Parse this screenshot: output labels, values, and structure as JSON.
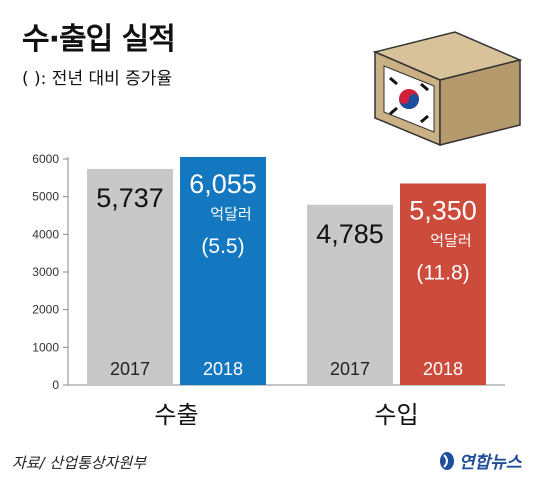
{
  "title": "수·출입 실적",
  "subtitle": "( ): 전년 대비 증가율",
  "source": "자료/ 산업통상자원부",
  "logo_text": "연합뉴스",
  "colors": {
    "bar_2017": "#c8c8c8",
    "export_2018": "#1478c0",
    "import_2018": "#cc4b3a",
    "axis": "#888888"
  },
  "chart_data": {
    "type": "bar",
    "title": "수·출입 실적",
    "groups": [
      "수출",
      "수입"
    ],
    "series": [
      {
        "name": "2017",
        "values": [
          5737,
          4785
        ]
      },
      {
        "name": "2018",
        "values": [
          6055,
          5350
        ]
      }
    ],
    "value_labels": {
      "2017": [
        "5,737",
        "4,785"
      ],
      "2018": [
        "6,055",
        "5,350"
      ]
    },
    "unit": "억달러",
    "growth_labels": [
      "(5.5)",
      "(11.8)"
    ],
    "ylim": [
      0,
      6000
    ],
    "yticks": [
      0,
      1000,
      2000,
      3000,
      4000,
      5000,
      6000
    ],
    "grid": false
  }
}
